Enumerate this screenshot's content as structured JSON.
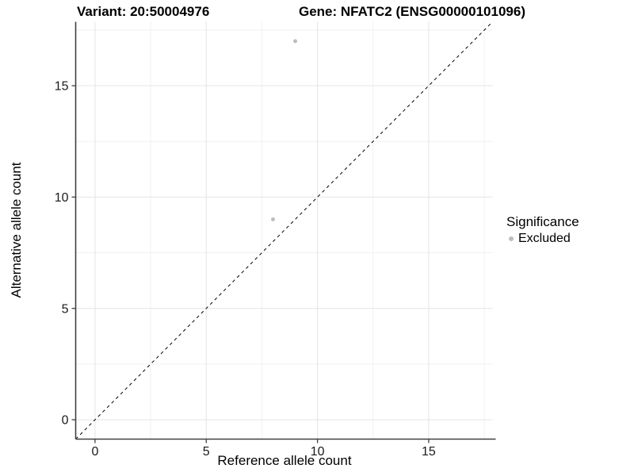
{
  "chart_data": {
    "type": "scatter",
    "title_left": "Variant: 20:50004976",
    "title_right": "Gene: NFATC2 (ENSG00000101096)",
    "xlabel": "Reference allele count",
    "ylabel": "Alternative allele count",
    "xlim": [
      -0.87,
      17.87
    ],
    "ylim": [
      -0.87,
      17.87
    ],
    "xticks": [
      0,
      5,
      10,
      15
    ],
    "yticks": [
      0,
      5,
      10,
      15
    ],
    "minor_ticks": [
      2.5,
      7.5,
      12.5,
      17.5
    ],
    "grid": true,
    "points": [
      {
        "x": 9,
        "y": 17,
        "significance": "Excluded"
      },
      {
        "x": 8,
        "y": 9,
        "significance": "Excluded"
      }
    ],
    "reference_line": {
      "slope": 1,
      "intercept": 0,
      "style": "dashed",
      "color": "#000000"
    },
    "legend": {
      "title": "Significance",
      "position": "right",
      "items": [
        {
          "label": "Excluded",
          "color": "#bdbdbd"
        }
      ]
    },
    "colors": {
      "point": "#bdbdbd",
      "grid_major": "#e4e4e4",
      "grid_minor": "#f1f1f1",
      "axis": "#404040",
      "tick_label": "#1a1a1a",
      "background": "#ffffff"
    }
  }
}
